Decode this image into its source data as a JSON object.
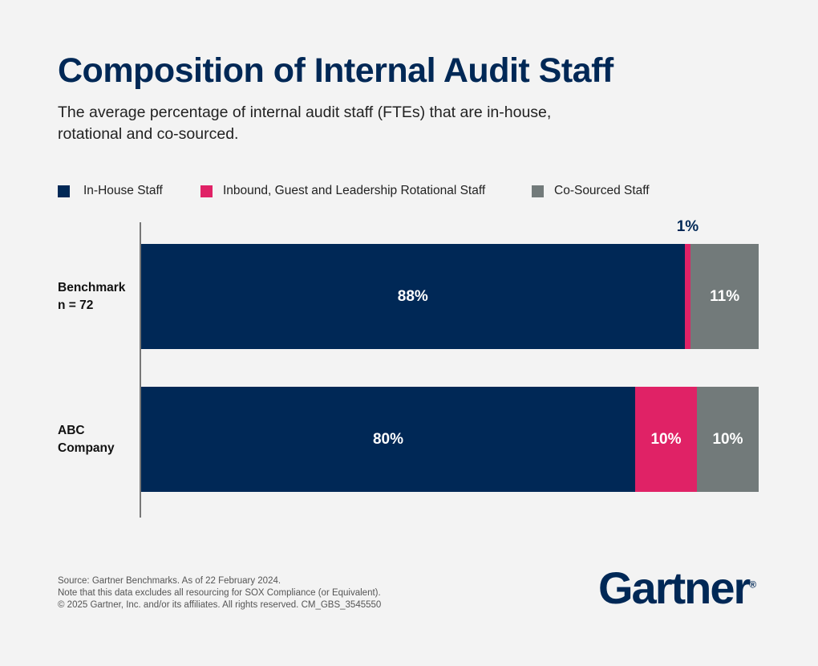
{
  "chart_data": {
    "type": "bar",
    "orientation": "horizontal",
    "stacked": true,
    "title": "Composition of Internal Audit Staff",
    "subtitle": "The average percentage of internal audit staff (FTEs) that are in-house, rotational and co-sourced.",
    "categories": [
      [
        "Benchmark",
        "n = 72"
      ],
      [
        "ABC",
        "Company"
      ]
    ],
    "series": [
      {
        "name": "In-House Staff",
        "color": "#002856",
        "values": [
          88,
          80
        ],
        "labels": [
          "88%",
          "80%"
        ]
      },
      {
        "name": "Inbound, Guest and Leadership Rotational Staff",
        "color": "#e02266",
        "values": [
          1,
          10
        ],
        "labels": [
          "1%",
          "10%"
        ]
      },
      {
        "name": "Co-Sourced Staff",
        "color": "#727a7a",
        "values": [
          11,
          10
        ],
        "labels": [
          "11%",
          "10%"
        ]
      }
    ],
    "xlim": [
      0,
      100
    ],
    "legend": "top",
    "grid": false
  },
  "footer": {
    "lines": [
      "Source: Gartner Benchmarks. As of 22 February 2024.",
      "Note that this data excludes all resourcing for SOX Compliance (or Equivalent).",
      "© 2025 Gartner, Inc. and/or its affiliates. All rights reserved. CM_GBS_3545550"
    ]
  },
  "logo": {
    "text": "Gartner",
    "mark": "®"
  }
}
